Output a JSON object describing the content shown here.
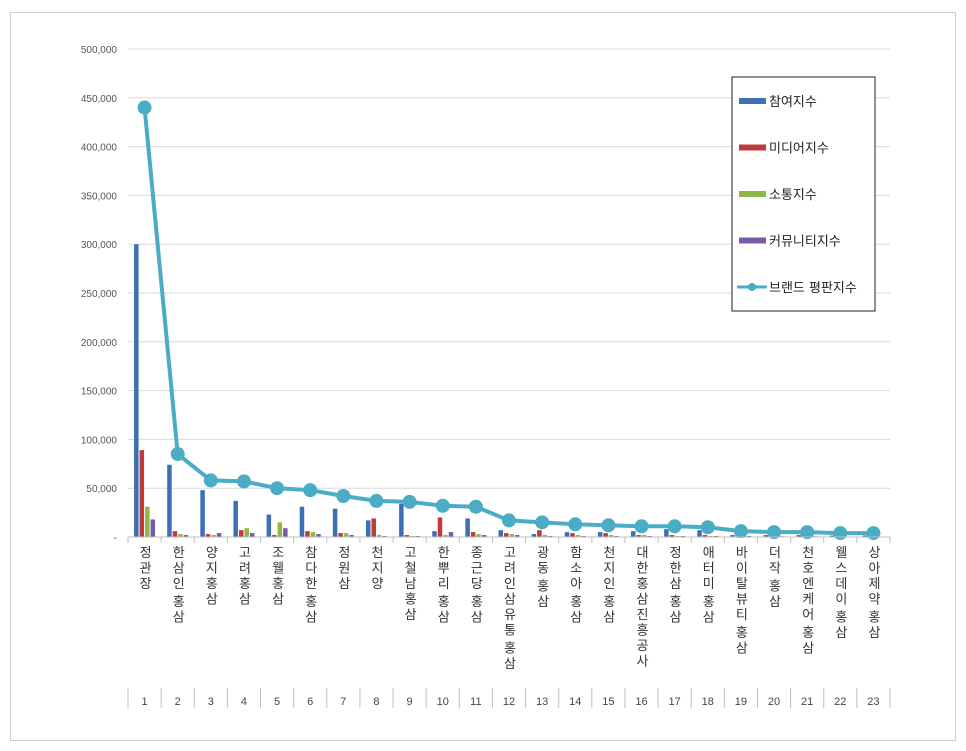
{
  "chart_data": {
    "type": "bar",
    "title": "",
    "xlabel": "",
    "ylabel": "",
    "ylim": [
      0,
      500000
    ],
    "yticks": [
      "-",
      "50,000",
      "100,000",
      "150,000",
      "200,000",
      "250,000",
      "300,000",
      "350,000",
      "400,000",
      "450,000",
      "500,000"
    ],
    "grid": true,
    "legend_position": "top-right",
    "ranks": [
      "1",
      "2",
      "3",
      "4",
      "5",
      "6",
      "7",
      "8",
      "9",
      "10",
      "11",
      "12",
      "13",
      "14",
      "15",
      "16",
      "17",
      "18",
      "19",
      "20",
      "21",
      "22",
      "23"
    ],
    "categories": [
      "정관장",
      "한삼인 홍삼",
      "양지홍삼",
      "고려홍삼",
      "조웰홍삼",
      "참다한 홍삼",
      "정원삼",
      "천지양",
      "고철남홍삼",
      "한뿌리 홍삼",
      "종근당 홍삼",
      "고려인삼유통 홍삼",
      "광동 홍삼",
      "함소아 홍삼",
      "천지인 홍삼",
      "대한홍삼진흥공사",
      "정한삼 홍삼",
      "애터미 홍삼",
      "바이탈뷰티 홍삼",
      "더작 홍삼",
      "천호엔케어 홍삼",
      "웰스데이 홍삼",
      "상아제약 홍삼"
    ],
    "series": [
      {
        "name": "참여지수",
        "color": "#3e6fb5",
        "kind": "bar",
        "values": [
          300000,
          74000,
          48000,
          37000,
          23000,
          31000,
          29000,
          17000,
          34000,
          6000,
          19000,
          7000,
          3000,
          5000,
          5000,
          6000,
          8000,
          7000,
          2000,
          2000,
          2000,
          1500,
          1500
        ]
      },
      {
        "name": "미디어지수",
        "color": "#c0393b",
        "kind": "bar",
        "values": [
          89000,
          6000,
          3000,
          7000,
          2000,
          6000,
          4000,
          19000,
          2000,
          20000,
          5000,
          4000,
          7000,
          4000,
          4000,
          2000,
          2000,
          2000,
          1000,
          1000,
          1000,
          500,
          500
        ]
      },
      {
        "name": "소통지수",
        "color": "#8db845",
        "kind": "bar",
        "values": [
          31000,
          3000,
          2000,
          9000,
          15000,
          5000,
          4000,
          2000,
          1000,
          2000,
          3000,
          3000,
          2000,
          2000,
          2000,
          2000,
          1000,
          1000,
          1000,
          800,
          800,
          500,
          500
        ]
      },
      {
        "name": "커뮤니티지수",
        "color": "#7b5ba8",
        "kind": "bar",
        "values": [
          18000,
          2000,
          4000,
          4000,
          9000,
          3000,
          2000,
          1000,
          1000,
          5000,
          2000,
          2000,
          1000,
          1000,
          1000,
          1000,
          1000,
          1000,
          1000,
          700,
          700,
          400,
          400
        ]
      },
      {
        "name": "브랜드 평판지수",
        "color": "#4bacc6",
        "kind": "line",
        "values": [
          440000,
          85000,
          58000,
          57000,
          50000,
          48000,
          42000,
          37000,
          36000,
          32000,
          31000,
          17000,
          15000,
          13000,
          12000,
          11000,
          11000,
          10000,
          6000,
          5000,
          5000,
          4000,
          4000
        ]
      }
    ]
  }
}
